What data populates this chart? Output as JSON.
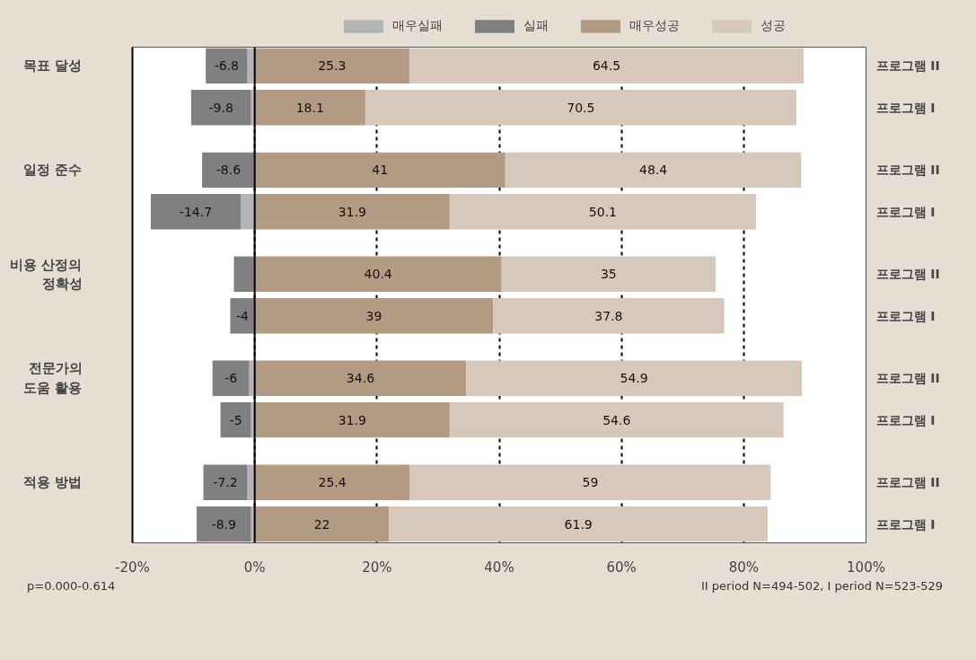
{
  "chart_data": {
    "type": "bar",
    "orientation": "horizontal",
    "stacked": true,
    "categories": [
      "목표 달성",
      null,
      "일정 준수",
      null,
      "비용 산정의\n정확성",
      null,
      "전문가의\n도움 활용",
      null,
      "적용 방법",
      null
    ],
    "series": [
      {
        "name": "매우실패",
        "color": "#b4b4b4",
        "values": [
          -1.2,
          -0.6,
          null,
          -2.3,
          null,
          null,
          -0.9,
          -0.6,
          -1.2,
          -0.6
        ]
      },
      {
        "name": "실패",
        "color": "#808080",
        "values": [
          -6.8,
          -9.8,
          -8.6,
          -14.7,
          -3.4,
          -4,
          -6,
          -5,
          -7.2,
          -8.9
        ],
        "value_labels": [
          "-6.8",
          "-9.8",
          "-8.6",
          "-14.7",
          null,
          "-4",
          "-6",
          "-5",
          "-7.2",
          "-8.9"
        ]
      },
      {
        "name": "매우성공",
        "color": "#b39b83",
        "values": [
          25.3,
          18.1,
          41,
          31.9,
          40.4,
          39,
          34.6,
          31.9,
          25.4,
          22
        ],
        "value_labels": [
          "25.3",
          "18.1",
          "41",
          "31.9",
          "40.4",
          "39",
          "34.6",
          "31.9",
          "25.4",
          "22"
        ]
      },
      {
        "name": "성공",
        "color": "#d6c8ba",
        "values": [
          64.5,
          70.5,
          48.4,
          50.1,
          35,
          37.8,
          54.9,
          54.6,
          59,
          61.9
        ],
        "value_labels": [
          "64.5",
          "70.5",
          "48.4",
          "50.1",
          "35",
          "37.8",
          "54.9",
          "54.6",
          "59",
          "61.9"
        ]
      }
    ],
    "xlim": [
      -20,
      100
    ],
    "xticks": [
      {
        "value": -20,
        "label": "-20%"
      },
      {
        "value": 0,
        "label": "0%"
      },
      {
        "value": 20,
        "label": "20%"
      },
      {
        "value": 40,
        "label": "40%"
      },
      {
        "value": 60,
        "label": "60%"
      },
      {
        "value": 80,
        "label": "80%"
      },
      {
        "value": 100,
        "label": "100%"
      }
    ],
    "grid": "x",
    "legend": "top",
    "ref_lines": [
      {
        "axis": "x",
        "value": 0,
        "color": "#000000"
      }
    ],
    "annotations": [
      "p=0.000-0.614",
      "II period N=494-502, I period N=523-529",
      "프로그램 II",
      "프로그램 I",
      "프로그램 II",
      "프로그램 I",
      "프로그램 II",
      "프로그램 I",
      "프로그램 II",
      "프로그램 I",
      "프로그램 II",
      "프로그램 I"
    ]
  }
}
